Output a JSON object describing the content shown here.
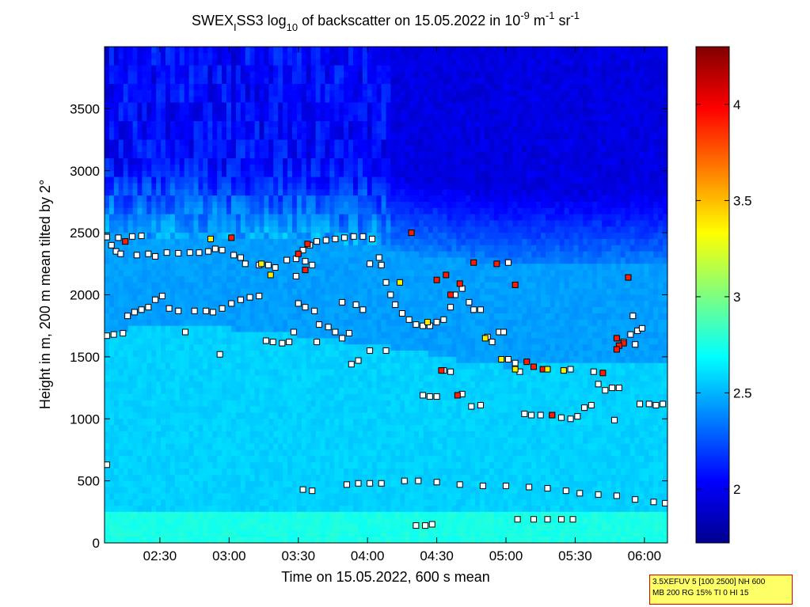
{
  "chart_data": {
    "type": "heatmap",
    "title": {
      "t1": "SWEX",
      "t2": "I",
      "t3": "SS3 log",
      "t4": "10",
      "t5": " of backscatter on 15.05.2022 in 10",
      "t6": "-9",
      "t7": " m",
      "t8": "-1",
      "t9": " sr",
      "t10": "-1"
    },
    "xlabel": "Time on 15.05.2022, 600 s mean",
    "ylabel": "Height in m, 200 m mean tilted by 2°",
    "x_ticks": [
      "02:30",
      "03:00",
      "03:30",
      "04:00",
      "04:30",
      "05:00",
      "05:30",
      "06:00"
    ],
    "x_tick_minutes": [
      150,
      180,
      210,
      240,
      270,
      300,
      330,
      360
    ],
    "xlim_minutes": [
      126,
      370
    ],
    "y_ticks": [
      "0",
      "500",
      "1000",
      "1500",
      "2000",
      "2500",
      "3000",
      "3500"
    ],
    "y_tick_values": [
      0,
      500,
      1000,
      1500,
      2000,
      2500,
      3000,
      3500
    ],
    "ylim": [
      0,
      4000
    ],
    "colorbar": {
      "ticks": [
        "2",
        "2.5",
        "3",
        "3.5",
        "4"
      ],
      "tick_values": [
        2,
        2.5,
        3,
        3.5,
        4
      ],
      "range": [
        1.72,
        4.3
      ],
      "colormap": "jet"
    },
    "layers": {
      "dense_top_m": [
        [
          126,
          2480
        ],
        [
          160,
          2470
        ],
        [
          190,
          2460
        ],
        [
          220,
          2450
        ],
        [
          240,
          2400
        ],
        [
          260,
          2330
        ],
        [
          280,
          2280
        ],
        [
          300,
          2230
        ],
        [
          330,
          2230
        ],
        [
          360,
          2230
        ],
        [
          370,
          2240
        ]
      ],
      "mid_top_m": [
        [
          126,
          1720
        ],
        [
          170,
          1740
        ],
        [
          200,
          1700
        ],
        [
          220,
          1650
        ],
        [
          240,
          1600
        ],
        [
          260,
          1550
        ],
        [
          280,
          1470
        ],
        [
          300,
          1420
        ],
        [
          320,
          1450
        ],
        [
          350,
          1460
        ],
        [
          370,
          1470
        ]
      ]
    },
    "points": [
      {
        "name": "cloud-top-early",
        "dots": [
          [
            127,
            2465
          ],
          [
            132,
            2460
          ],
          [
            138,
            2470
          ],
          [
            142,
            2475
          ],
          [
            129,
            2400
          ],
          [
            131,
            2350
          ],
          [
            133,
            2330
          ],
          [
            140,
            2320
          ],
          [
            145,
            2330
          ],
          [
            148,
            2310
          ],
          [
            153,
            2340
          ],
          [
            158,
            2335
          ],
          [
            163,
            2340
          ],
          [
            167,
            2340
          ],
          [
            171,
            2350
          ],
          [
            174,
            2370
          ],
          [
            177,
            2360
          ],
          [
            182,
            2320
          ],
          [
            185,
            2300
          ],
          [
            187,
            2250
          ],
          [
            193,
            2240
          ],
          [
            197,
            2240
          ],
          [
            200,
            2220
          ],
          [
            205,
            2280
          ],
          [
            209,
            2290
          ],
          [
            213,
            2270
          ],
          [
            216,
            2240
          ]
        ],
        "color": "#ffffff"
      },
      {
        "name": "cloud-top-mid",
        "dots": [
          [
            212,
            2360
          ],
          [
            215,
            2400
          ],
          [
            218,
            2430
          ],
          [
            222,
            2440
          ],
          [
            226,
            2450
          ],
          [
            230,
            2460
          ],
          [
            234,
            2470
          ],
          [
            238,
            2470
          ],
          [
            242,
            2450
          ],
          [
            245,
            2300
          ],
          [
            241,
            2250
          ],
          [
            246,
            2240
          ]
        ],
        "color": "#ffffff"
      },
      {
        "name": "cloud-base-early",
        "dots": [
          [
            127,
            1670
          ],
          [
            130,
            1680
          ],
          [
            134,
            1690
          ],
          [
            136,
            1830
          ],
          [
            139,
            1860
          ],
          [
            142,
            1880
          ],
          [
            145,
            1900
          ],
          [
            148,
            1960
          ],
          [
            151,
            1990
          ],
          [
            154,
            1890
          ],
          [
            158,
            1870
          ],
          [
            165,
            1870
          ],
          [
            170,
            1870
          ],
          [
            173,
            1860
          ],
          [
            177,
            1890
          ],
          [
            181,
            1930
          ],
          [
            185,
            1960
          ],
          [
            189,
            1980
          ],
          [
            193,
            1990
          ],
          [
            196,
            1630
          ],
          [
            199,
            1620
          ],
          [
            203,
            1610
          ],
          [
            206,
            1620
          ],
          [
            208,
            1700
          ],
          [
            210,
            1930
          ],
          [
            213,
            1900
          ],
          [
            217,
            1870
          ],
          [
            219,
            1760
          ],
          [
            223,
            1740
          ],
          [
            226,
            1700
          ],
          [
            229,
            1650
          ],
          [
            235,
            1920
          ],
          [
            238,
            1880
          ]
        ],
        "color": "#ffffff"
      },
      {
        "name": "cloud-base-mid",
        "dots": [
          [
            233,
            1440
          ],
          [
            236,
            1470
          ],
          [
            241,
            1550
          ],
          [
            246,
            2240
          ],
          [
            248,
            2100
          ],
          [
            250,
            2000
          ],
          [
            252,
            1920
          ],
          [
            255,
            1850
          ],
          [
            258,
            1800
          ],
          [
            261,
            1760
          ],
          [
            264,
            1750
          ],
          [
            267,
            1750
          ],
          [
            270,
            1780
          ],
          [
            273,
            1800
          ],
          [
            276,
            1900
          ],
          [
            278,
            2000
          ],
          [
            281,
            2050
          ],
          [
            284,
            1940
          ],
          [
            286,
            1880
          ],
          [
            289,
            1880
          ],
          [
            292,
            1660
          ],
          [
            294,
            1620
          ],
          [
            297,
            1700
          ],
          [
            299,
            1700
          ]
        ],
        "color": "#ffffff"
      },
      {
        "name": "cloud-base-late",
        "dots": [
          [
            264,
            1190
          ],
          [
            267,
            1180
          ],
          [
            270,
            1180
          ],
          [
            273,
            1390
          ],
          [
            276,
            1380
          ],
          [
            281,
            1200
          ],
          [
            285,
            1100
          ],
          [
            289,
            1110
          ],
          [
            301,
            1480
          ],
          [
            304,
            1450
          ],
          [
            306,
            1380
          ],
          [
            308,
            1040
          ],
          [
            311,
            1030
          ],
          [
            315,
            1030
          ],
          [
            320,
            1030
          ],
          [
            324,
            1010
          ],
          [
            328,
            1000
          ],
          [
            331,
            1020
          ],
          [
            334,
            1090
          ],
          [
            337,
            1110
          ],
          [
            340,
            1280
          ],
          [
            343,
            1230
          ],
          [
            346,
            1250
          ],
          [
            349,
            1250
          ],
          [
            351,
            1620
          ],
          [
            354,
            1680
          ],
          [
            357,
            1710
          ],
          [
            359,
            1730
          ],
          [
            356,
            1600
          ],
          [
            358,
            1120
          ],
          [
            362,
            1120
          ],
          [
            365,
            1110
          ],
          [
            368,
            1120
          ],
          [
            347,
            990
          ],
          [
            338,
            1380
          ],
          [
            328,
            1400
          ]
        ],
        "color": "#ffffff"
      },
      {
        "name": "low-layer",
        "dots": [
          [
            127,
            630
          ],
          [
            212,
            430
          ],
          [
            216,
            420
          ],
          [
            231,
            470
          ],
          [
            236,
            480
          ],
          [
            241,
            480
          ],
          [
            246,
            480
          ],
          [
            256,
            500
          ],
          [
            262,
            500
          ],
          [
            270,
            490
          ],
          [
            280,
            470
          ],
          [
            290,
            460
          ],
          [
            300,
            460
          ],
          [
            310,
            450
          ],
          [
            318,
            440
          ],
          [
            326,
            420
          ],
          [
            332,
            400
          ],
          [
            340,
            390
          ],
          [
            348,
            380
          ],
          [
            356,
            350
          ],
          [
            364,
            330
          ],
          [
            369,
            320
          ]
        ],
        "color": "#ffffff"
      },
      {
        "name": "ground-segments",
        "dots": [
          [
            261,
            140
          ],
          [
            265,
            140
          ],
          [
            268,
            150
          ],
          [
            305,
            190
          ],
          [
            312,
            190
          ],
          [
            318,
            190
          ],
          [
            324,
            190
          ],
          [
            329,
            190
          ]
        ],
        "color": "#ffffff"
      },
      {
        "name": "isolated-returns",
        "dots": [
          [
            161,
            1700
          ],
          [
            176,
            1520
          ],
          [
            209,
            2150
          ],
          [
            218,
            1620
          ],
          [
            232,
            1690
          ],
          [
            248,
            1550
          ],
          [
            301,
            2260
          ],
          [
            355,
            1830
          ],
          [
            229,
            1940
          ]
        ],
        "color": "#ffffff"
      },
      {
        "name": "red-returns",
        "dots": [
          [
            135,
            2430
          ],
          [
            181,
            2460
          ],
          [
            210,
            2330
          ],
          [
            214,
            2410
          ],
          [
            259,
            2500
          ],
          [
            270,
            2120
          ],
          [
            274,
            2160
          ],
          [
            276,
            2000
          ],
          [
            280,
            2090
          ],
          [
            286,
            2260
          ],
          [
            296,
            2250
          ],
          [
            304,
            2080
          ],
          [
            309,
            1460
          ],
          [
            312,
            1420
          ],
          [
            316,
            1400
          ],
          [
            320,
            1030
          ],
          [
            342,
            1370
          ],
          [
            348,
            1650
          ],
          [
            351,
            1610
          ],
          [
            353,
            2140
          ],
          [
            349,
            1590
          ],
          [
            348,
            1560
          ],
          [
            272,
            1390
          ],
          [
            279,
            1190
          ],
          [
            213,
            2200
          ]
        ],
        "color": "#ff1a00"
      },
      {
        "name": "yellow-returns",
        "dots": [
          [
            172,
            2450
          ],
          [
            194,
            2250
          ],
          [
            198,
            2160
          ],
          [
            254,
            2100
          ],
          [
            298,
            1480
          ],
          [
            304,
            1400
          ],
          [
            318,
            1400
          ],
          [
            325,
            1390
          ],
          [
            291,
            1650
          ],
          [
            266,
            1780
          ]
        ],
        "color": "#ffee00"
      }
    ],
    "info_box": [
      "3.5XEFUV 5 [100 2500] NH 600",
      "MB 200 RG 15% TI 0 HI 15"
    ]
  }
}
